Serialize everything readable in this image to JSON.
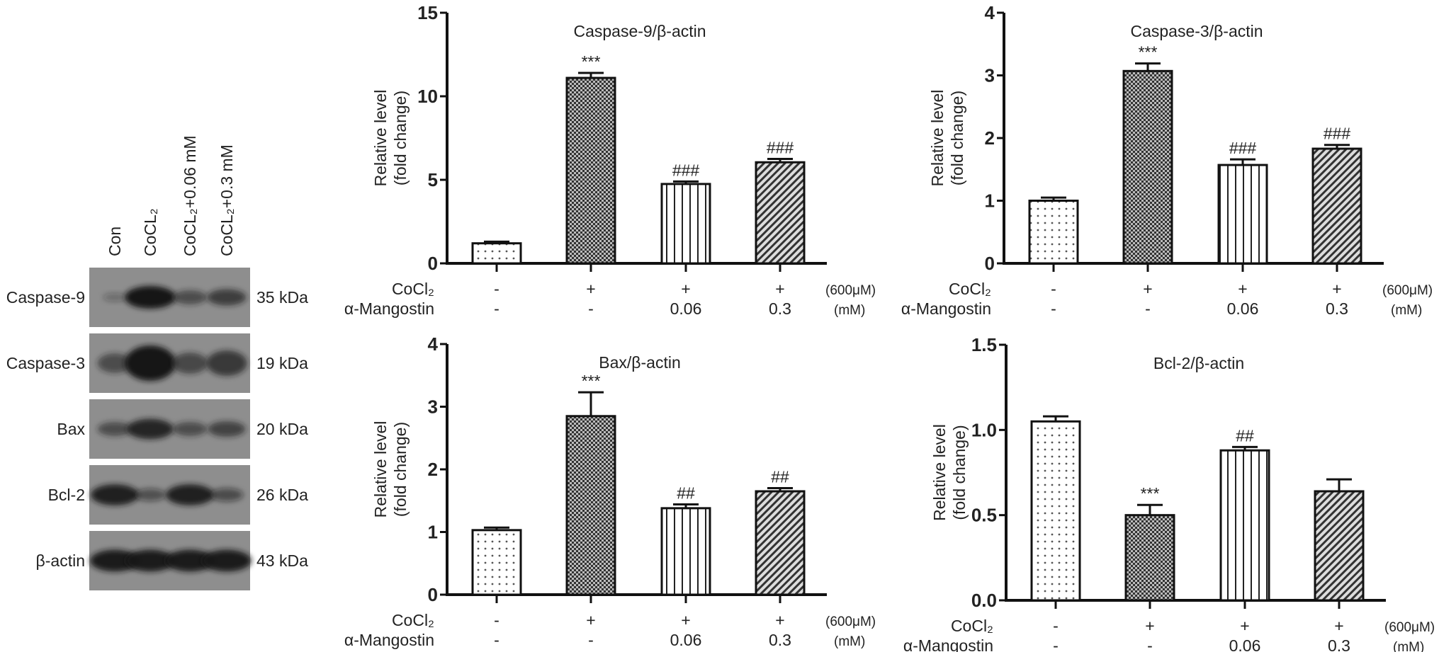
{
  "blot": {
    "lanes": [
      "Con",
      "CoCL₂",
      "CoCL₂+0.06 mM",
      "CoCL₂+0.3 mM"
    ],
    "rows": [
      {
        "protein": "Caspase-9",
        "size": "35 kDa",
        "intensity": [
          0.08,
          1.0,
          0.45,
          0.6
        ]
      },
      {
        "protein": "Caspase-3",
        "size": "19 kDa",
        "intensity": [
          0.45,
          1.0,
          0.5,
          0.65
        ]
      },
      {
        "protein": "Bax",
        "size": "20 kDa",
        "intensity": [
          0.45,
          0.85,
          0.45,
          0.55
        ]
      },
      {
        "protein": "Bcl-2",
        "size": "26 kDa",
        "intensity": [
          0.9,
          0.35,
          0.9,
          0.4
        ]
      },
      {
        "protein": "β-actin",
        "size": "43 kDa",
        "intensity": [
          0.95,
          0.95,
          0.95,
          0.95
        ]
      }
    ]
  },
  "conditions": {
    "row1_label": "CoCl₂",
    "row1_values": [
      "-",
      "+",
      "+",
      "+"
    ],
    "row1_unit": "(600μM)",
    "row2_label": "α-Mangostin",
    "row2_values": [
      "-",
      "-",
      "0.06",
      "0.3"
    ],
    "row2_unit": "(mM)"
  },
  "chart_data": [
    {
      "type": "bar",
      "title": "Caspase-9/β-actin",
      "ylabel": [
        "Relative level",
        "(fold change)"
      ],
      "ylim": [
        0,
        15
      ],
      "yticks": [
        "0",
        "5",
        "10",
        "15"
      ],
      "ytick_values": [
        0,
        5,
        10,
        15
      ],
      "values": [
        1.2,
        11.1,
        4.75,
        6.05
      ],
      "errors": [
        0.1,
        0.3,
        0.15,
        0.2
      ],
      "annotations": [
        "",
        "***",
        "###",
        "###"
      ]
    },
    {
      "type": "bar",
      "title": "Caspase-3/β-actin",
      "ylabel": [
        "Relative level",
        "(fold change)"
      ],
      "ylim": [
        0,
        4
      ],
      "yticks": [
        "0",
        "1",
        "2",
        "3",
        "4"
      ],
      "ytick_values": [
        0,
        1,
        2,
        3,
        4
      ],
      "values": [
        1.0,
        3.07,
        1.57,
        1.83
      ],
      "errors": [
        0.05,
        0.12,
        0.09,
        0.06
      ],
      "annotations": [
        "",
        "***",
        "###",
        "###"
      ]
    },
    {
      "type": "bar",
      "title": "Bax/β-actin",
      "ylabel": [
        "Relative level",
        "(fold change)"
      ],
      "ylim": [
        0,
        4
      ],
      "yticks": [
        "0",
        "1",
        "2",
        "3",
        "4"
      ],
      "ytick_values": [
        0,
        1,
        2,
        3,
        4
      ],
      "values": [
        1.03,
        2.85,
        1.38,
        1.65
      ],
      "errors": [
        0.04,
        0.38,
        0.06,
        0.05
      ],
      "annotations": [
        "",
        "***",
        "##",
        "##"
      ]
    },
    {
      "type": "bar",
      "title": "Bcl-2/β-actin",
      "ylabel": [
        "Relative level",
        "(fold change)"
      ],
      "ylim": [
        0,
        1.5
      ],
      "yticks": [
        "0.0",
        "0.5",
        "1.0",
        "1.5"
      ],
      "ytick_values": [
        0,
        0.5,
        1.0,
        1.5
      ],
      "values": [
        1.05,
        0.5,
        0.88,
        0.64
      ],
      "errors": [
        0.03,
        0.06,
        0.02,
        0.07
      ],
      "annotations": [
        "",
        "***",
        "##",
        ""
      ]
    }
  ]
}
